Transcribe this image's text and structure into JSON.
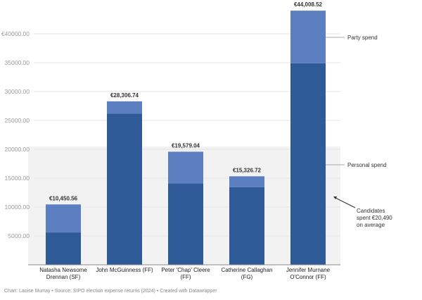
{
  "chart_data": {
    "type": "bar",
    "stacked": true,
    "categories": [
      [
        "Natasha Newsome",
        "Drennan (SF)"
      ],
      [
        "John McGuinness (FF)"
      ],
      [
        "Peter 'Chap' Cleere",
        "(FF)"
      ],
      [
        "Catherine Callaghan",
        "(FG)"
      ],
      [
        "Jennifer Murnane",
        "O'Connor (FF)"
      ]
    ],
    "series": [
      {
        "name": "Personal spend",
        "values": [
          5600,
          26200,
          14100,
          13450,
          34900
        ],
        "color": "#2f5a98"
      },
      {
        "name": "Party spend",
        "values": [
          4850.56,
          2106.74,
          5479.04,
          1876.72,
          9108.52
        ],
        "color": "#5b7fc0"
      }
    ],
    "totals": [
      10450.56,
      28306.74,
      19579.04,
      15326.72,
      44008.52
    ],
    "total_labels": [
      "€10,450.56",
      "€28,306.74",
      "€19,579.04",
      "€15,326.72",
      "€44,008.52"
    ],
    "yticks": [
      5000,
      10000,
      15000,
      20000,
      25000,
      30000,
      35000,
      40000
    ],
    "ytick_labels": [
      "5000.00",
      "10000.00",
      "15000.00",
      "20000.00",
      "25000.00",
      "30000.00",
      "35000.00",
      "€40000.00"
    ],
    "ylim": [
      0,
      45000
    ],
    "grid": true,
    "average_band": {
      "value": 20490,
      "color": "#f2f2f2"
    },
    "annotations": {
      "party": "Party spend",
      "personal": "Personal spend",
      "average": [
        "Candidates",
        "spent €20,490",
        "on average"
      ]
    }
  },
  "footer": "Chart: Laoise Murray • Source: SIPO election expense returns (2024) • Created with Datawrapper"
}
